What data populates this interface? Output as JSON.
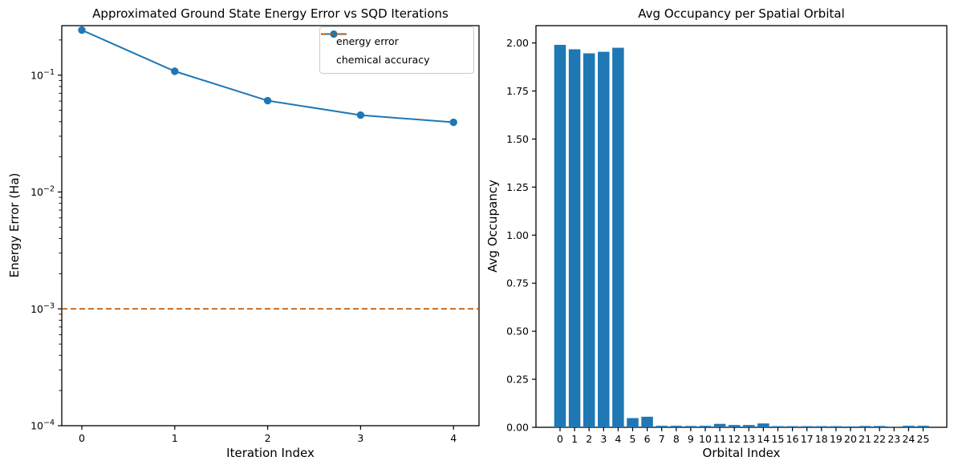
{
  "figure": {
    "background": "#ffffff",
    "text_color": "#000000",
    "accent_blue": "#1f77b4",
    "accent_orange": "#BF5700"
  },
  "chart_data": [
    {
      "id": "energy_error_vs_iterations",
      "type": "line",
      "title": "Approximated Ground State Energy Error vs SQD Iterations",
      "xlabel": "Iteration Index",
      "ylabel": "Energy Error (Ha)",
      "yscale": "log",
      "grid": false,
      "x": [
        0,
        1,
        2,
        3,
        4
      ],
      "series": [
        {
          "name": "energy error",
          "color": "#1f77b4",
          "linestyle": "solid",
          "marker": "circle",
          "values": [
            0.243,
            0.108,
            0.0605,
            0.0455,
            0.0395
          ]
        }
      ],
      "hlines": [
        {
          "name": "chemical accuracy",
          "value": 0.001,
          "color": "#BF5700",
          "linestyle": "dashed"
        }
      ],
      "xlim": [
        -0.22,
        4.28
      ],
      "ylim": [
        0.0001,
        0.266
      ],
      "xticks": [
        "0",
        "1",
        "2",
        "3",
        "4"
      ],
      "ytick_exponents": [
        -1,
        -2,
        -3,
        -4
      ],
      "legend": {
        "position": "upper right",
        "entries": [
          {
            "label": "energy error"
          },
          {
            "label": "chemical accuracy"
          }
        ]
      }
    },
    {
      "id": "avg_occupancy_per_spatial_orbital",
      "type": "bar",
      "title": "Avg Occupancy per Spatial Orbital",
      "xlabel": "Orbital Index",
      "ylabel": "Avg Occupancy",
      "grid": false,
      "bar_color": "#1f77b4",
      "categories": [
        "0",
        "1",
        "2",
        "3",
        "4",
        "5",
        "6",
        "7",
        "8",
        "9",
        "10",
        "11",
        "12",
        "13",
        "14",
        "15",
        "16",
        "17",
        "18",
        "19",
        "20",
        "21",
        "22",
        "23",
        "24",
        "25"
      ],
      "values": [
        1.99,
        1.967,
        1.946,
        1.954,
        1.975,
        0.048,
        0.055,
        0.008,
        0.008,
        0.007,
        0.008,
        0.018,
        0.012,
        0.012,
        0.02,
        0.006,
        0.006,
        0.006,
        0.006,
        0.006,
        0.005,
        0.007,
        0.007,
        0.001,
        0.008,
        0.008
      ],
      "ylim": [
        0,
        2.09
      ],
      "yticks": [
        0,
        0.25,
        0.5,
        0.75,
        1.0,
        1.25,
        1.5,
        1.75,
        2.0
      ]
    }
  ]
}
